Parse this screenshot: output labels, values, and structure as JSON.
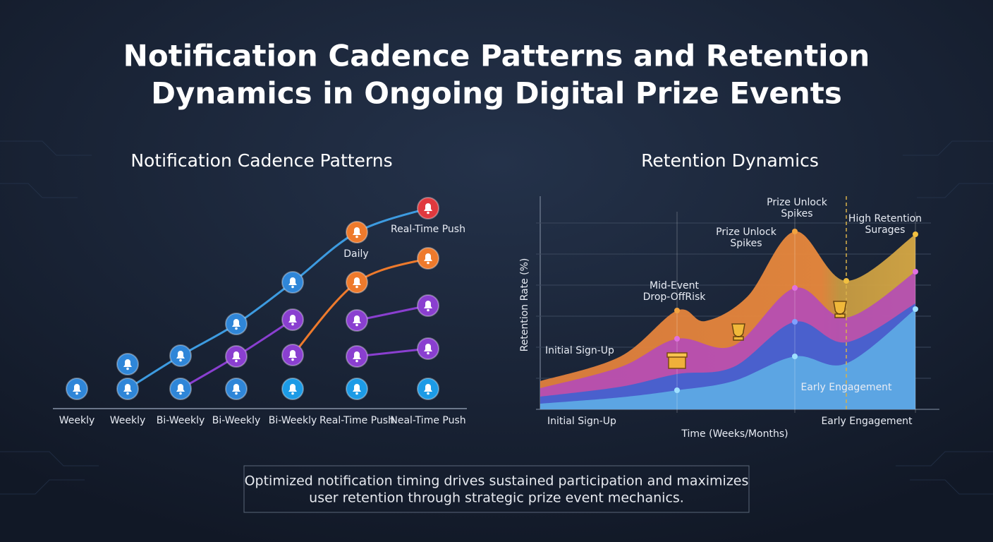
{
  "title_lines": [
    "Notification Cadence Patterns and Retention",
    "Dynamics in Ongoing Digital Prize Events"
  ],
  "left_panel": {
    "title": "Notification Cadence Patterns",
    "categories": [
      "Weekly",
      "Weekly",
      "Bi-Weekly",
      "Bi-Weekly",
      "Bi-Weekly",
      "Real-Time Push",
      "Neal-Time Push"
    ],
    "labels": [
      "Daily",
      "Real-Time Push"
    ]
  },
  "right_panel": {
    "title": "Retention Dynamics",
    "y_axis_label": "Retention Rate (%)",
    "x_axis_label": "Time (Weeks/Months)",
    "x_labels": [
      "Initial Sign-Up",
      "Early Engagement"
    ],
    "annotations": [
      {
        "lines": [
          "Prize Unlock",
          "Spikes"
        ]
      },
      {
        "lines": [
          "Prize Unlock",
          "Spikes"
        ]
      },
      {
        "lines": [
          "High Retention",
          "Surages"
        ]
      },
      {
        "lines": [
          "Mid-Event",
          "Drop-OffRisk"
        ]
      },
      {
        "lines": [
          "Initial Sign-Up"
        ]
      },
      {
        "lines": [
          "Early Engagement"
        ]
      }
    ]
  },
  "caption_lines": [
    "Optimized notification timing drives sustained participation and maximizes",
    "user retention through strategic prize event mechanics."
  ]
}
